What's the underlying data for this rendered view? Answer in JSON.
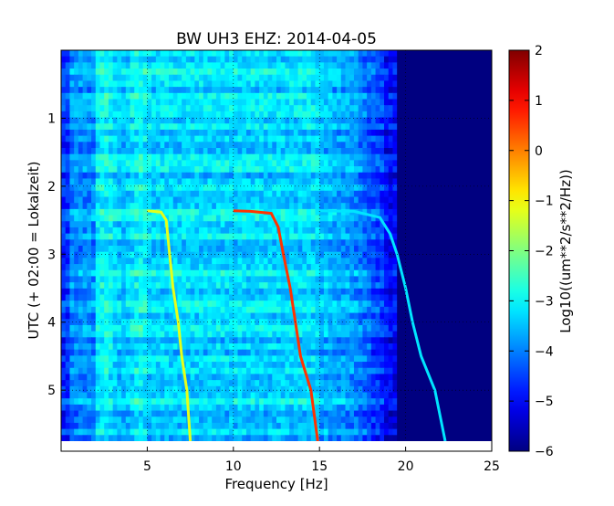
{
  "chart_data": {
    "type": "heatmap",
    "title": "BW UH3 EHZ: 2014-04-05",
    "xlabel": "Frequency [Hz]",
    "ylabel": "UTC (+ 02:00 = Lokalzeit)",
    "xlim": [
      0,
      25
    ],
    "ylim": [
      5.75,
      0
    ],
    "x_ticks": [
      5,
      10,
      15,
      20,
      25
    ],
    "y_ticks": [
      1,
      2,
      3,
      4,
      5
    ],
    "grid": true,
    "colormap": "jet",
    "colorbar": {
      "label": "Log10((um**2/s**2/Hz))",
      "range": [
        -6,
        2
      ],
      "ticks": [
        2,
        1,
        0,
        -1,
        -2,
        -3,
        -4,
        -5,
        -6
      ]
    },
    "data_end_utc": 5.75,
    "lines": [
      {
        "name": "line-1",
        "color_value": -1.2,
        "points": [
          [
            5.0,
            2.36
          ],
          [
            5.8,
            2.38
          ],
          [
            6.1,
            2.5
          ],
          [
            6.3,
            3.0
          ],
          [
            6.5,
            3.5
          ],
          [
            6.8,
            4.0
          ],
          [
            7.0,
            4.5
          ],
          [
            7.3,
            5.0
          ],
          [
            7.5,
            5.75
          ]
        ]
      },
      {
        "name": "line-2",
        "color_value": 0.6,
        "points": [
          [
            10.0,
            2.36
          ],
          [
            11.0,
            2.37
          ],
          [
            12.2,
            2.4
          ],
          [
            12.6,
            2.6
          ],
          [
            12.9,
            3.0
          ],
          [
            13.3,
            3.5
          ],
          [
            13.6,
            4.0
          ],
          [
            13.9,
            4.5
          ],
          [
            14.5,
            5.0
          ],
          [
            14.9,
            5.75
          ]
        ]
      },
      {
        "name": "line-3",
        "color_value": -3.2,
        "points": [
          [
            15.0,
            2.36
          ],
          [
            17.0,
            2.37
          ],
          [
            18.5,
            2.46
          ],
          [
            19.1,
            2.7
          ],
          [
            19.5,
            3.0
          ],
          [
            20.0,
            3.5
          ],
          [
            20.4,
            4.0
          ],
          [
            20.9,
            4.5
          ],
          [
            21.7,
            5.0
          ],
          [
            22.3,
            5.75
          ]
        ]
      }
    ]
  }
}
